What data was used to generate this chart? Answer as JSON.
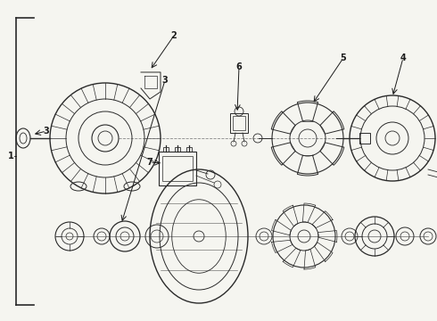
{
  "background_color": "#f5f5f0",
  "part_color": "#2a2a2a",
  "label_color": "#1a1a1a",
  "bracket_color": "#2a2a2a",
  "figsize": [
    4.9,
    3.6
  ],
  "dpi": 100
}
